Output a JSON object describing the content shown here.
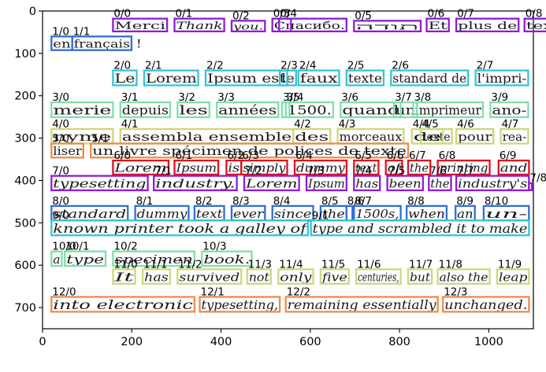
{
  "figure": {
    "x_axis": {
      "limits": [
        0,
        1100
      ],
      "ticks": [
        0,
        200,
        400,
        600,
        800,
        1000
      ]
    },
    "y_axis": {
      "limits": [
        750,
        0
      ],
      "ticks": [
        0,
        100,
        200,
        300,
        400,
        500,
        600,
        700
      ]
    }
  },
  "colors": {
    "0": "#8f1bd6",
    "1": "#2f6fd6",
    "2": "#32c6d6",
    "3": "#7fe0a9",
    "4": "#cfd67d",
    "5": "#f08a4b",
    "6": "#e0101f",
    "7": "#8f1bd6",
    "8": "#2f6fd6",
    "9": "#32c6d6",
    "10": "#7fe0a9",
    "11": "#cfd67d",
    "12": "#f08a4b"
  },
  "words": [
    {
      "label": "0/0",
      "text": "Merci",
      "italic": false,
      "line": 0,
      "x0": 95,
      "x1": 168,
      "y0": 18,
      "y1": 48
    },
    {
      "label": "0/1",
      "text": "Thank",
      "italic": true,
      "line": 0,
      "x0": 178,
      "x1": 245,
      "y0": 18,
      "y1": 48
    },
    {
      "label": "0/2",
      "text": "you.",
      "italic": true,
      "line": 0,
      "x0": 255,
      "x1": 300,
      "y0": 23,
      "y1": 48
    },
    {
      "label": "0/3",
      "text": "Спасибо.",
      "italic": false,
      "line": 0,
      "x0": 310,
      "x1": 410,
      "y0": 18,
      "y1": 48
    },
    {
      "label": "0/4",
      "text": "",
      "italic": false,
      "line": 0,
      "x0": 319,
      "x1": 335,
      "y0": 18,
      "y1": 48
    },
    {
      "label": "0/5",
      "text": "תודה",
      "italic": false,
      "line": 0,
      "x0": 420,
      "x1": 510,
      "y0": 23,
      "y1": 48
    },
    {
      "label": "0/6",
      "text": "Et",
      "italic": false,
      "line": 0,
      "x0": 518,
      "x1": 548,
      "y0": 18,
      "y1": 48
    },
    {
      "label": "0/7",
      "text": "plus de",
      "italic": false,
      "line": 0,
      "x0": 558,
      "x1": 642,
      "y0": 18,
      "y1": 48
    },
    {
      "label": "0/8",
      "text": "texte",
      "italic": false,
      "line": 0,
      "x0": 650,
      "x1": 713,
      "y0": 18,
      "y1": 48
    },
    {
      "label": "1/0",
      "text": "en",
      "italic": false,
      "line": 1,
      "x0": 12,
      "x1": 40,
      "y0": 60,
      "y1": 92
    },
    {
      "label": "1/1",
      "text": "français",
      "italic": false,
      "line": 1,
      "x0": 40,
      "x1": 120,
      "y0": 60,
      "y1": 92
    },
    {
      "label": "",
      "text": "!",
      "italic": false,
      "line": 1,
      "x0": 124,
      "x1": 136,
      "y0": 60,
      "y1": 92
    },
    {
      "label": "2/0",
      "text": "Le",
      "italic": false,
      "line": 2,
      "x0": 95,
      "x1": 127,
      "y0": 140,
      "y1": 175
    },
    {
      "label": "2/1",
      "text": "Lorem",
      "italic": false,
      "line": 2,
      "x0": 137,
      "x1": 210,
      "y0": 140,
      "y1": 175
    },
    {
      "label": "2/2",
      "text": "Ipsum est",
      "italic": false,
      "line": 2,
      "x0": 220,
      "x1": 330,
      "y0": 140,
      "y1": 175
    },
    {
      "label": "2/3",
      "text": "le",
      "italic": false,
      "line": 2,
      "x0": 320,
      "x1": 342,
      "y0": 140,
      "y1": 175
    },
    {
      "label": "2/4",
      "text": "faux",
      "italic": false,
      "line": 2,
      "x0": 345,
      "x1": 400,
      "y0": 140,
      "y1": 175
    },
    {
      "label": "2/5",
      "text": "texte",
      "italic": false,
      "line": 2,
      "x0": 410,
      "x1": 460,
      "y0": 140,
      "y1": 175
    },
    {
      "label": "2/6",
      "text": "standard de",
      "italic": false,
      "line": 2,
      "x0": 470,
      "x1": 574,
      "y0": 140,
      "y1": 175
    },
    {
      "label": "2/7",
      "text": "l'impri-",
      "italic": false,
      "line": 2,
      "x0": 584,
      "x1": 655,
      "y0": 140,
      "y1": 175
    },
    {
      "label": "3/0",
      "text": "merie",
      "italic": false,
      "line": 3,
      "x0": 12,
      "x1": 95,
      "y0": 215,
      "y1": 250
    },
    {
      "label": "3/1",
      "text": "depuis",
      "italic": false,
      "line": 3,
      "x0": 105,
      "x1": 172,
      "y0": 215,
      "y1": 250
    },
    {
      "label": "3/2",
      "text": "les",
      "italic": false,
      "line": 3,
      "x0": 182,
      "x1": 225,
      "y0": 215,
      "y1": 250
    },
    {
      "label": "3/3",
      "text": "années",
      "italic": false,
      "line": 3,
      "x0": 235,
      "x1": 318,
      "y0": 215,
      "y1": 250
    },
    {
      "label": "3/4",
      "text": "1500.",
      "italic": false,
      "line": 3,
      "x0": 328,
      "x1": 392,
      "y0": 215,
      "y1": 250
    },
    {
      "label": "3/5",
      "text": "",
      "italic": false,
      "line": 3,
      "x0": 323,
      "x1": 333,
      "y0": 215,
      "y1": 250
    },
    {
      "label": "3/6",
      "text": "quand",
      "italic": false,
      "line": 3,
      "x0": 402,
      "x1": 483,
      "y0": 215,
      "y1": 250
    },
    {
      "label": "3/7",
      "text": "un",
      "italic": false,
      "line": 3,
      "x0": 474,
      "x1": 505,
      "y0": 215,
      "y1": 250
    },
    {
      "label": "3/8",
      "text": "imprimeur",
      "italic": false,
      "line": 3,
      "x0": 500,
      "x1": 594,
      "y0": 215,
      "y1": 250
    },
    {
      "label": "3/9",
      "text": "ano-",
      "italic": false,
      "line": 3,
      "x0": 604,
      "x1": 655,
      "y0": 215,
      "y1": 250
    },
    {
      "label": "4/0",
      "text": "nyme",
      "italic": false,
      "line": 4,
      "x0": 12,
      "x1": 95,
      "y0": 278,
      "y1": 312
    },
    {
      "label": "4/1",
      "text": "assembla ensemble",
      "italic": false,
      "line": 4,
      "x0": 105,
      "x1": 338,
      "y0": 278,
      "y1": 312
    },
    {
      "label": "4/2",
      "text": "des",
      "italic": false,
      "line": 4,
      "x0": 338,
      "x1": 388,
      "y0": 278,
      "y1": 312
    },
    {
      "label": "4/3",
      "text": "morceaux",
      "italic": false,
      "line": 4,
      "x0": 398,
      "x1": 487,
      "y0": 278,
      "y1": 312
    },
    {
      "label": "4/4",
      "text": "de",
      "italic": false,
      "line": 4,
      "x0": 498,
      "x1": 540,
      "y0": 278,
      "y1": 312
    },
    {
      "label": "4/5",
      "text": "texte",
      "italic": false,
      "line": 4,
      "x0": 510,
      "x1": 552,
      "y0": 278,
      "y1": 312
    },
    {
      "label": "4/6",
      "text": "pour",
      "italic": false,
      "line": 4,
      "x0": 558,
      "x1": 608,
      "y0": 278,
      "y1": 312
    },
    {
      "label": "4/7",
      "text": "rea-",
      "italic": false,
      "line": 4,
      "x0": 618,
      "x1": 655,
      "y0": 278,
      "y1": 312
    },
    {
      "label": "5/0",
      "text": "liser",
      "italic": false,
      "line": 5,
      "x0": 12,
      "x1": 55,
      "y0": 312,
      "y1": 345
    },
    {
      "label": "5/1",
      "text": "un livre spécimen de polices de texte",
      "italic": false,
      "line": 5,
      "x0": 65,
      "x1": 493,
      "y0": 312,
      "y1": 345
    },
    {
      "label": "6/0",
      "text": "Lorem",
      "italic": true,
      "line": 6,
      "x0": 95,
      "x1": 170,
      "y0": 352,
      "y1": 385
    },
    {
      "label": "6/1",
      "text": "Ipsum",
      "italic": true,
      "line": 6,
      "x0": 178,
      "x1": 237,
      "y0": 352,
      "y1": 385
    },
    {
      "label": "6/2",
      "text": "is",
      "italic": true,
      "line": 6,
      "x0": 248,
      "x1": 268,
      "y0": 352,
      "y1": 385
    },
    {
      "label": "6/3",
      "text": "simply",
      "italic": true,
      "line": 6,
      "x0": 268,
      "x1": 330,
      "y0": 352,
      "y1": 385
    },
    {
      "label": "6/4",
      "text": "dummy",
      "italic": true,
      "line": 6,
      "x0": 340,
      "x1": 410,
      "y0": 352,
      "y1": 385
    },
    {
      "label": "6/5",
      "text": "text",
      "italic": true,
      "line": 6,
      "x0": 420,
      "x1": 453,
      "y0": 352,
      "y1": 385
    },
    {
      "label": "6/6",
      "text": "of",
      "italic": true,
      "line": 6,
      "x0": 463,
      "x1": 485,
      "y0": 352,
      "y1": 385
    },
    {
      "label": "6/7",
      "text": "the",
      "italic": true,
      "line": 6,
      "x0": 493,
      "x1": 523,
      "y0": 352,
      "y1": 385
    },
    {
      "label": "6/8",
      "text": "printing",
      "italic": true,
      "line": 6,
      "x0": 533,
      "x1": 603,
      "y0": 352,
      "y1": 385
    },
    {
      "label": "6/9",
      "text": "and",
      "italic": true,
      "line": 6,
      "x0": 615,
      "x1": 656,
      "y0": 352,
      "y1": 385
    },
    {
      "label": "7/0",
      "text": "typesetting",
      "italic": true,
      "line": 7,
      "x0": 12,
      "x1": 142,
      "y0": 388,
      "y1": 422
    },
    {
      "label": "7/1",
      "text": "industry.",
      "italic": true,
      "line": 7,
      "x0": 150,
      "x1": 262,
      "y0": 388,
      "y1": 422
    },
    {
      "label": "7/2",
      "text": "Lorem",
      "italic": true,
      "line": 7,
      "x0": 272,
      "x1": 346,
      "y0": 388,
      "y1": 422
    },
    {
      "label": "7/3",
      "text": "Ipsum",
      "italic": true,
      "line": 7,
      "x0": 356,
      "x1": 410,
      "y0": 388,
      "y1": 422
    },
    {
      "label": "7/4",
      "text": "has",
      "italic": true,
      "line": 7,
      "x0": 420,
      "x1": 455,
      "y0": 388,
      "y1": 422
    },
    {
      "label": "7/5",
      "text": "been",
      "italic": true,
      "line": 7,
      "x0": 465,
      "x1": 513,
      "y0": 388,
      "y1": 422
    },
    {
      "label": "7/6",
      "text": "the",
      "italic": true,
      "line": 7,
      "x0": 521,
      "x1": 551,
      "y0": 388,
      "y1": 422
    },
    {
      "label": "7/7",
      "text": "industry's",
      "italic": true,
      "line": 7,
      "x0": 558,
      "x1": 656,
      "y0": 388,
      "y1": 422
    },
    {
      "label": "7/8",
      "text": "",
      "italic": true,
      "line": 7,
      "x0": 656,
      "x1": 660,
      "y0": 405,
      "y1": 422
    },
    {
      "label": "8/0",
      "text": "standard",
      "italic": true,
      "line": 8,
      "x0": 12,
      "x1": 115,
      "y0": 459,
      "y1": 493
    },
    {
      "label": "8/1",
      "text": "dummy",
      "italic": true,
      "line": 8,
      "x0": 125,
      "x1": 197,
      "y0": 459,
      "y1": 493
    },
    {
      "label": "8/2",
      "text": "text",
      "italic": true,
      "line": 8,
      "x0": 205,
      "x1": 245,
      "y0": 459,
      "y1": 493
    },
    {
      "label": "8/3",
      "text": "ever",
      "italic": true,
      "line": 8,
      "x0": 255,
      "x1": 300,
      "y0": 459,
      "y1": 493
    },
    {
      "label": "8/4",
      "text": "since",
      "italic": true,
      "line": 8,
      "x0": 310,
      "x1": 365,
      "y0": 459,
      "y1": 493
    },
    {
      "label": "8/5",
      "text": "the",
      "italic": true,
      "line": 8,
      "x0": 375,
      "x1": 410,
      "y0": 459,
      "y1": 493
    },
    {
      "label": "8/6",
      "text": "",
      "italic": true,
      "line": 8,
      "x0": 410,
      "x1": 418,
      "y0": 459,
      "y1": 493
    },
    {
      "label": "8/7",
      "text": "1500s,",
      "italic": true,
      "line": 8,
      "x0": 420,
      "x1": 483,
      "y0": 459,
      "y1": 493
    },
    {
      "label": "8/8",
      "text": "when",
      "italic": true,
      "line": 8,
      "x0": 491,
      "x1": 545,
      "y0": 459,
      "y1": 493
    },
    {
      "label": "8/9",
      "text": "an",
      "italic": true,
      "line": 8,
      "x0": 557,
      "x1": 583,
      "y0": 459,
      "y1": 493
    },
    {
      "label": "8/10",
      "text": "un-",
      "italic": true,
      "line": 8,
      "x0": 595,
      "x1": 656,
      "y0": 459,
      "y1": 493
    },
    {
      "label": "9/0",
      "text": "known printer took a galley of",
      "italic": true,
      "line": 9,
      "x0": 12,
      "x1": 358,
      "y0": 493,
      "y1": 528
    },
    {
      "label": "9/1",
      "text": "type and scrambled it to make",
      "italic": true,
      "line": 9,
      "x0": 362,
      "x1": 656,
      "y0": 493,
      "y1": 528
    },
    {
      "label": "10/0",
      "text": "a",
      "italic": true,
      "line": 10,
      "x0": 12,
      "x1": 26,
      "y0": 566,
      "y1": 600
    },
    {
      "label": "10/1",
      "text": "type",
      "italic": true,
      "line": 10,
      "x0": 30,
      "x1": 85,
      "y0": 566,
      "y1": 600
    },
    {
      "label": "10/2",
      "text": "specimen",
      "italic": true,
      "line": 10,
      "x0": 95,
      "x1": 205,
      "y0": 566,
      "y1": 600
    },
    {
      "label": "10/3",
      "text": "book.",
      "italic": true,
      "line": 10,
      "x0": 215,
      "x1": 282,
      "y0": 566,
      "y1": 600
    },
    {
      "label": "11/0",
      "text": "It",
      "italic": true,
      "line": 11,
      "x0": 95,
      "x1": 125,
      "y0": 608,
      "y1": 642
    },
    {
      "label": "11/1",
      "text": "has",
      "italic": true,
      "line": 11,
      "x0": 135,
      "x1": 172,
      "y0": 608,
      "y1": 642
    },
    {
      "label": "11/2",
      "text": "survived",
      "italic": true,
      "line": 11,
      "x0": 182,
      "x1": 268,
      "y0": 608,
      "y1": 642
    },
    {
      "label": "11/3",
      "text": "not",
      "italic": true,
      "line": 11,
      "x0": 276,
      "x1": 308,
      "y0": 608,
      "y1": 642
    },
    {
      "label": "11/4",
      "text": "only",
      "italic": true,
      "line": 11,
      "x0": 318,
      "x1": 365,
      "y0": 608,
      "y1": 642
    },
    {
      "label": "11/5",
      "text": "five",
      "italic": true,
      "line": 11,
      "x0": 375,
      "x1": 413,
      "y0": 608,
      "y1": 642
    },
    {
      "label": "11/6",
      "text": "centuries,",
      "italic": true,
      "line": 11,
      "x0": 423,
      "x1": 483,
      "y0": 608,
      "y1": 642
    },
    {
      "label": "11/7",
      "text": "but",
      "italic": true,
      "line": 11,
      "x0": 493,
      "x1": 525,
      "y0": 608,
      "y1": 642
    },
    {
      "label": "11/8",
      "text": "also the",
      "italic": true,
      "line": 11,
      "x0": 533,
      "x1": 603,
      "y0": 608,
      "y1": 642
    },
    {
      "label": "11/9",
      "text": "leap",
      "italic": true,
      "line": 11,
      "x0": 613,
      "x1": 656,
      "y0": 608,
      "y1": 642
    },
    {
      "label": "12/0",
      "text": "into electronic",
      "italic": true,
      "line": 12,
      "x0": 12,
      "x1": 205,
      "y0": 673,
      "y1": 708
    },
    {
      "label": "12/1",
      "text": "typesetting,",
      "italic": true,
      "line": 12,
      "x0": 212,
      "x1": 320,
      "y0": 673,
      "y1": 708
    },
    {
      "label": "12/2",
      "text": "remaining essentially",
      "italic": true,
      "line": 12,
      "x0": 328,
      "x1": 533,
      "y0": 673,
      "y1": 708
    },
    {
      "label": "12/3",
      "text": "unchanged.",
      "italic": true,
      "line": 12,
      "x0": 540,
      "x1": 656,
      "y0": 673,
      "y1": 708
    }
  ]
}
